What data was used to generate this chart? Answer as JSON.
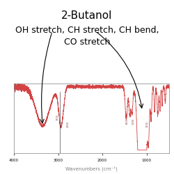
{
  "title": "2-Butanol",
  "subtitle": "OH stretch, CH stretch, CH bend,\nCO stretch",
  "xlabel": "Wavenumbers (cm⁻¹)",
  "ylabel": "",
  "background_color": "#ffffff",
  "spectrum_color": "#cc2222",
  "xlim": [
    4000,
    500
  ],
  "ylim": [
    -0.05,
    1.05
  ],
  "title_fontsize": 11,
  "subtitle_fontsize": 9,
  "xlabel_fontsize": 5,
  "xticks": [
    4000,
    3000,
    2000,
    1000
  ],
  "yticks": []
}
